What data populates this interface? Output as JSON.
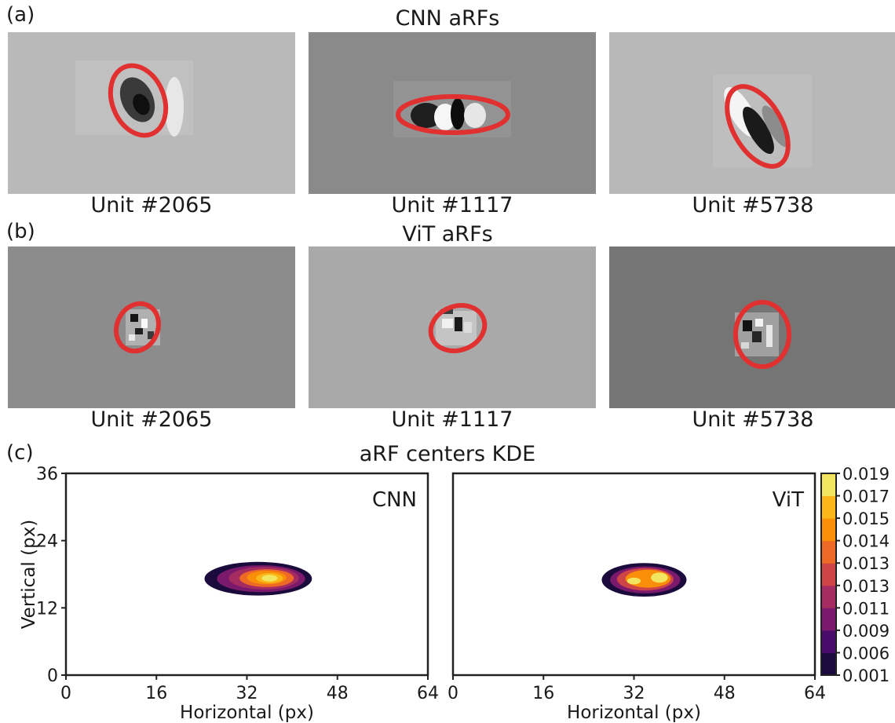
{
  "panel_a": {
    "label": "(a)",
    "title": "CNN aRFs",
    "units": [
      {
        "caption": "Unit #2065",
        "bg": "#b9b9b9"
      },
      {
        "caption": "Unit #1117",
        "bg": "#8a8a8a"
      },
      {
        "caption": "Unit #5738",
        "bg": "#b8b8b8"
      }
    ]
  },
  "panel_b": {
    "label": "(b)",
    "title": "ViT aRFs",
    "units": [
      {
        "caption": "Unit #2065",
        "bg": "#8c8c8c"
      },
      {
        "caption": "Unit #1117",
        "bg": "#a9a9a9"
      },
      {
        "caption": "Unit #5738",
        "bg": "#757575"
      }
    ]
  },
  "panel_c": {
    "label": "(c)",
    "title": "aRF centers KDE"
  },
  "colors": {
    "ellipse": "#e03030",
    "axis": "#222222",
    "cmap": [
      "#1b0b3c",
      "#4a0c6b",
      "#7b1a6c",
      "#a52c60",
      "#cf4446",
      "#ed6925",
      "#f98e09",
      "#fbb61a",
      "#f2e661"
    ]
  },
  "chart_data": [
    {
      "type": "heatmap",
      "name": "CNN",
      "xlabel": "Horizontal (px)",
      "ylabel": "Vertical (px)",
      "xlim": [
        0,
        64
      ],
      "ylim": [
        0,
        36
      ],
      "xticks": [
        0,
        16,
        32,
        48,
        64
      ],
      "yticks": [
        0,
        12,
        24,
        36
      ],
      "contours": [
        {
          "cx": 34.0,
          "cy": 17.2,
          "rx": 9.5,
          "ry": 3.0,
          "level": 0
        },
        {
          "cx": 34.5,
          "cy": 17.2,
          "rx": 7.8,
          "ry": 2.4,
          "level": 2
        },
        {
          "cx": 35.0,
          "cy": 17.3,
          "rx": 6.2,
          "ry": 2.0,
          "level": 3
        },
        {
          "cx": 35.5,
          "cy": 17.3,
          "rx": 4.8,
          "ry": 1.6,
          "level": 5
        },
        {
          "cx": 35.5,
          "cy": 17.4,
          "rx": 3.5,
          "ry": 1.2,
          "level": 6
        },
        {
          "cx": 36.0,
          "cy": 17.3,
          "rx": 2.4,
          "ry": 0.9,
          "level": 7
        },
        {
          "cx": 36.0,
          "cy": 17.3,
          "rx": 1.4,
          "ry": 0.6,
          "level": 8
        }
      ]
    },
    {
      "type": "heatmap",
      "name": "ViT",
      "xlabel": "Horizontal (px)",
      "xlim": [
        0,
        64
      ],
      "ylim": [
        0,
        36
      ],
      "xticks": [
        0,
        16,
        32,
        48,
        64
      ],
      "contours": [
        {
          "cx": 33.8,
          "cy": 17.0,
          "rx": 7.5,
          "ry": 3.0,
          "level": 0
        },
        {
          "cx": 34.0,
          "cy": 17.0,
          "rx": 6.2,
          "ry": 2.4,
          "level": 2
        },
        {
          "cx": 34.0,
          "cy": 17.1,
          "rx": 5.0,
          "ry": 2.0,
          "level": 4
        },
        {
          "cx": 34.5,
          "cy": 17.2,
          "rx": 4.0,
          "ry": 1.6,
          "level": 6
        },
        {
          "cx": 32.0,
          "cy": 16.8,
          "rx": 1.2,
          "ry": 0.6,
          "level": 8
        },
        {
          "cx": 36.5,
          "cy": 17.4,
          "rx": 1.5,
          "ry": 0.9,
          "level": 8
        }
      ]
    }
  ],
  "colorbar": {
    "ticks": [
      "0.019",
      "0.017",
      "0.015",
      "0.014",
      "0.013",
      "0.013",
      "0.011",
      "0.009",
      "0.006",
      "0.001"
    ]
  }
}
